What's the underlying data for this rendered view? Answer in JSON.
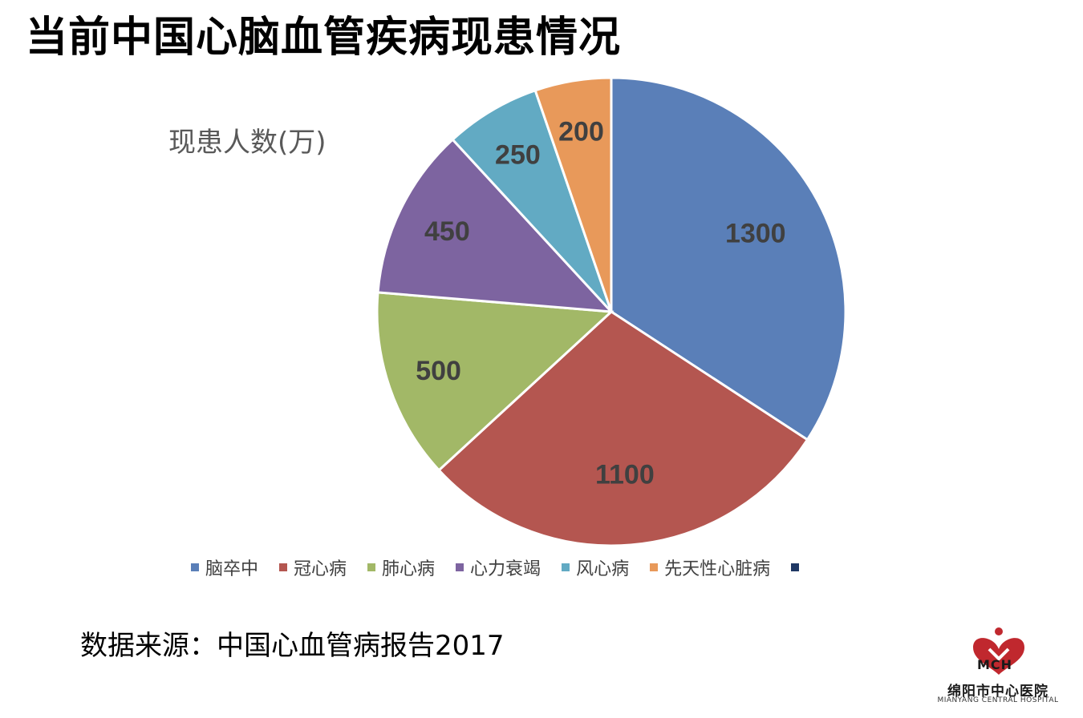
{
  "title": "当前中国心脑血管疾病现患情况",
  "subtitle": "现患人数(万)",
  "source": "数据来源：中国心血管病报告2017",
  "logo": {
    "mark": "MCH",
    "name": "绵阳市中心医院",
    "english": "MIANYANG CENTRAL HOSPITAL",
    "color": "#c0282e"
  },
  "chart_data": {
    "type": "pie",
    "title": "现患人数(万)",
    "categories": [
      "脑卒中",
      "冠心病",
      "肺心病",
      "心力衰竭",
      "风心病",
      "先天性心脏病"
    ],
    "values": [
      1300,
      1100,
      500,
      450,
      250,
      200
    ],
    "colors": [
      "#5a7fb8",
      "#b45650",
      "#a2b867",
      "#7d64a0",
      "#62aac3",
      "#e8995a"
    ],
    "legend_extra": {
      "label": "",
      "color": "#1f3864"
    },
    "legend": "bottom"
  }
}
